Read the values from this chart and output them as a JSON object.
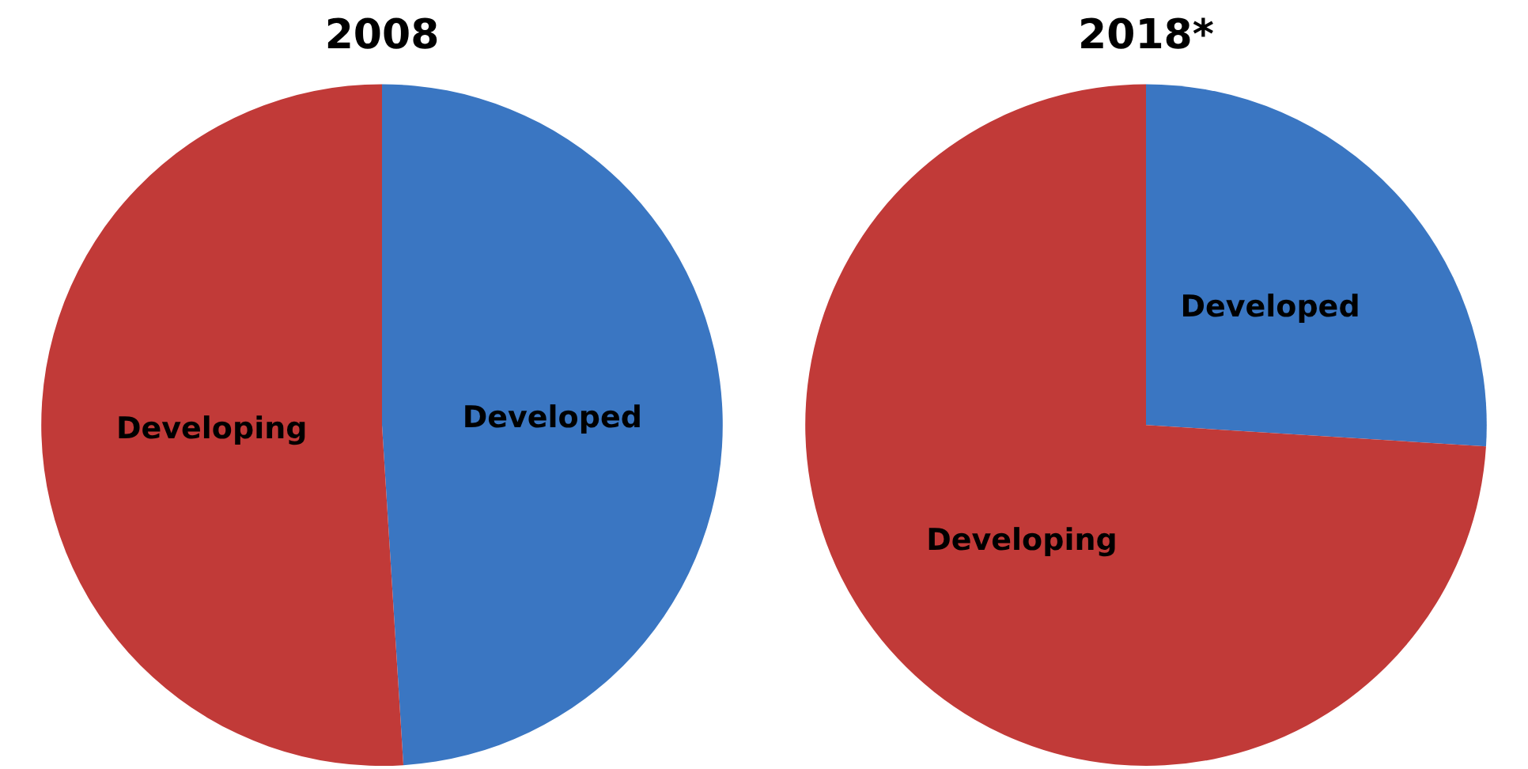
{
  "chart_data": [
    {
      "type": "pie",
      "title": "2008",
      "categories": [
        "Developed",
        "Developing"
      ],
      "values": [
        49,
        51
      ],
      "colors": [
        "#3a76c2",
        "#c13a38"
      ],
      "legend": false
    },
    {
      "type": "pie",
      "title": "2018*",
      "categories": [
        "Developed",
        "Developing"
      ],
      "values": [
        26,
        74
      ],
      "colors": [
        "#3a76c2",
        "#c13a38"
      ],
      "legend": false
    }
  ]
}
